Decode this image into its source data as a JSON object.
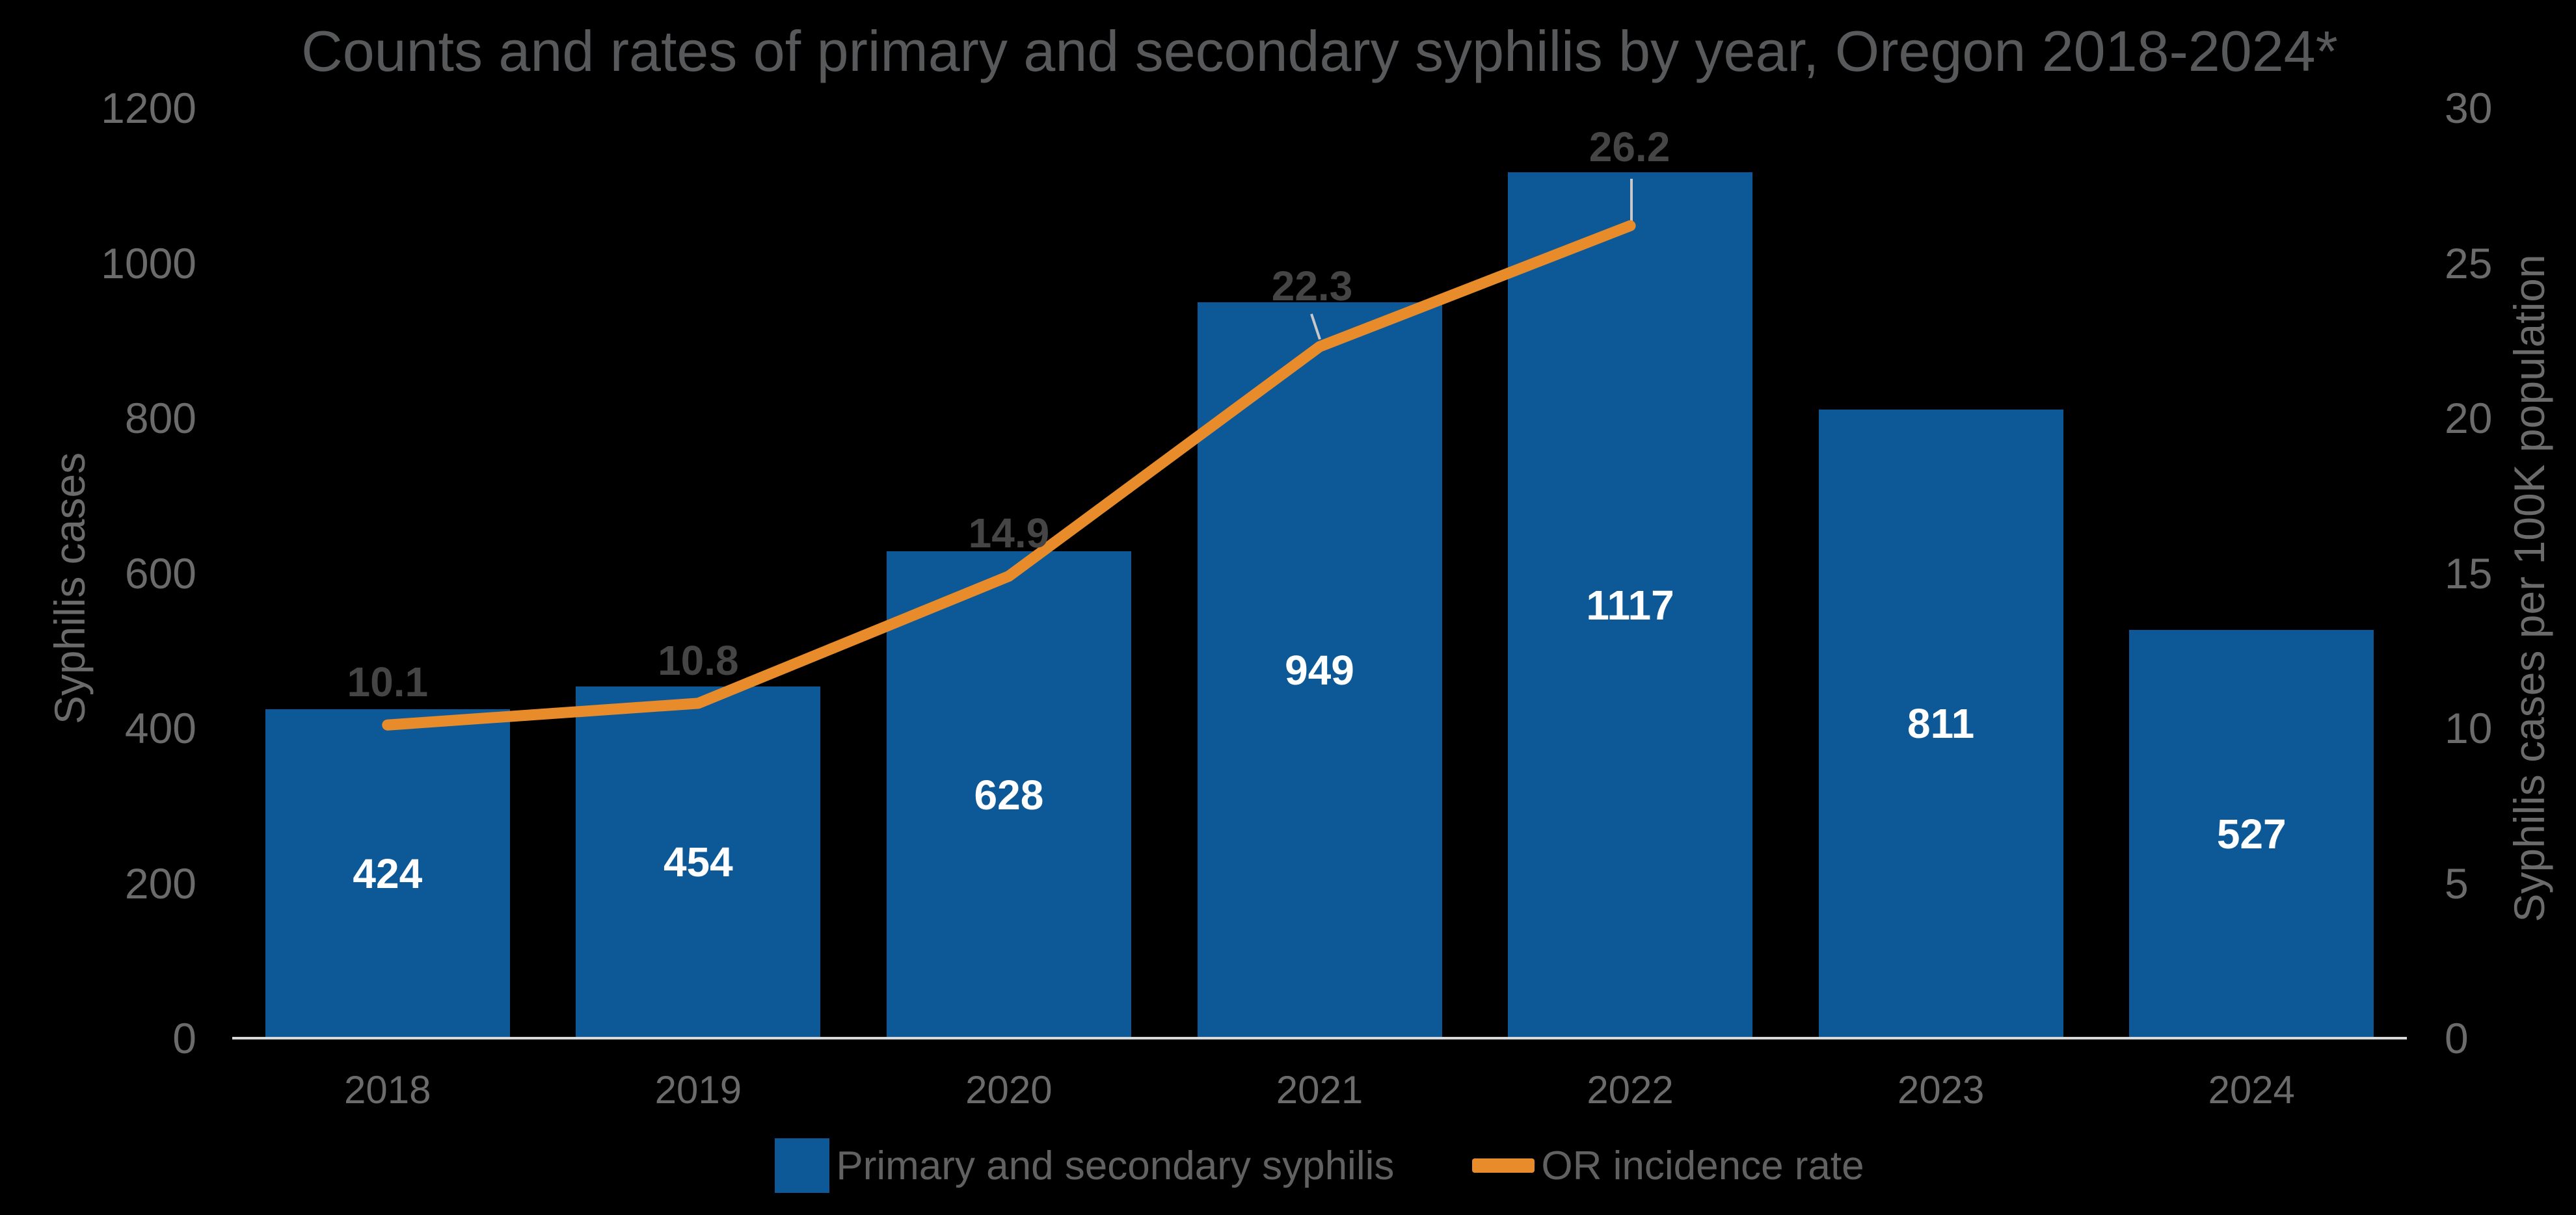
{
  "title": "Counts and rates of primary and secondary syphilis by year, Oregon 2018-2024*",
  "colors": {
    "background": "#000000",
    "bar": "#0D5998",
    "line": "#E88C2B",
    "bar_label": "#FFFFFF",
    "rate_label": "#454545",
    "tick_label": "#6B6B6B",
    "x_label": "#6B6B6B",
    "axis_title": "#6B6B6B",
    "title": "#58595B",
    "legend_text": "#616161",
    "axis_line": "#D9D9D9",
    "leader": "#C8C8C8"
  },
  "legend": {
    "items": [
      {
        "label": "Primary and secondary syphilis",
        "swatch": "square"
      },
      {
        "label": "OR incidence rate",
        "swatch": "line"
      }
    ]
  },
  "chart_data": {
    "type": "bar+line",
    "title": "Counts and rates of primary and secondary syphilis by year, Oregon 2018-2024*",
    "categories": [
      "2018",
      "2019",
      "2020",
      "2021",
      "2022",
      "2023",
      "2024"
    ],
    "series": [
      {
        "name": "Primary and secondary syphilis",
        "type": "bar",
        "axis": "left",
        "values": [
          424,
          454,
          628,
          949,
          1117,
          811,
          527
        ],
        "data_labels": [
          "424",
          "454",
          "628",
          "949",
          "1117",
          "811",
          "527"
        ]
      },
      {
        "name": "OR incidence rate",
        "type": "line",
        "axis": "right",
        "values": [
          10.1,
          10.8,
          14.9,
          22.3,
          26.2,
          null,
          null
        ],
        "data_labels": [
          "10.1",
          "10.8",
          "14.9",
          "22.3",
          "26.2",
          null,
          null
        ]
      }
    ],
    "left_axis": {
      "title": "Syphilis cases",
      "min": 0,
      "max": 1200,
      "ticks": [
        0,
        200,
        400,
        600,
        800,
        1000,
        1200
      ]
    },
    "right_axis": {
      "title": "Syphilis cases per 100K population",
      "min": 0,
      "max": 30,
      "ticks": [
        0,
        5,
        10,
        15,
        20,
        25,
        30
      ]
    },
    "legend_position": "bottom",
    "gridlines": false,
    "layout_hints": {
      "rate_label_default_dy": -66,
      "rate_label_callouts": {
        "3": {
          "x": 2017,
          "y": 440,
          "leader": [
            2016,
            483,
            2029,
            522
          ]
        },
        "4": {
          "x": 2505,
          "y": 226,
          "leader": [
            2508,
            275,
            2508,
            343
          ]
        }
      }
    }
  }
}
